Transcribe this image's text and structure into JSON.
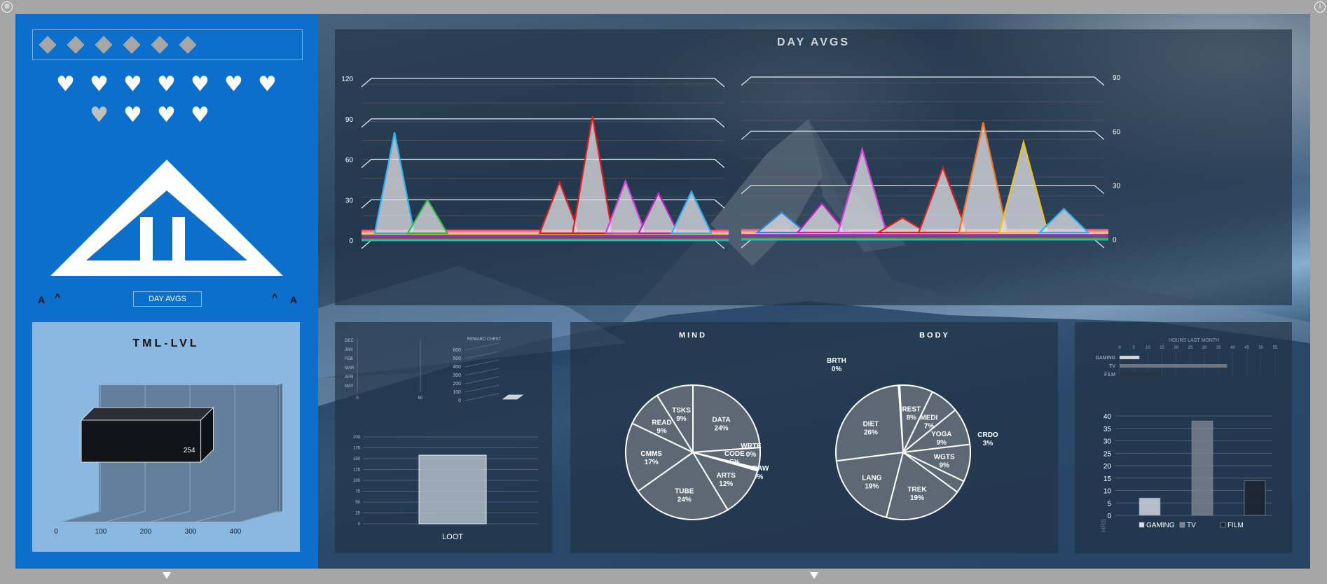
{
  "nav": {
    "button_label": "DAY AVGS",
    "left_a": "A",
    "left_caret": "^",
    "right_caret": "^",
    "right_a": "A"
  },
  "status": {
    "diamonds": 6,
    "hearts_total": 11,
    "hearts_grey_index": 7
  },
  "colors": {
    "left_panel": "#0b6fcb",
    "tml_box": "#8ab8e1",
    "card": "#203246"
  },
  "tml_chart": {
    "title": "TML-LVL",
    "chart_data": {
      "type": "bar",
      "orientation": "horizontal",
      "values": [
        254
      ],
      "value_label": "254",
      "xticks": [
        "0",
        "100",
        "200",
        "300",
        "400"
      ],
      "xlim": [
        0,
        400
      ]
    }
  },
  "day_avgs": {
    "title": "DAY AVGS",
    "left": {
      "yticks": [
        "0",
        "30",
        "60",
        "90",
        "120"
      ],
      "ylim": [
        0,
        120
      ],
      "peaks": [
        {
          "x": 1,
          "y": 80,
          "color": "#2eb0f0"
        },
        {
          "x": 2,
          "y": 30,
          "color": "#2db84c"
        },
        {
          "x": 6,
          "y": 43,
          "color": "#e02020"
        },
        {
          "x": 7,
          "y": 92,
          "color": "#e02020"
        },
        {
          "x": 8,
          "y": 44,
          "color": "#d43fe0"
        },
        {
          "x": 9,
          "y": 35,
          "color": "#c020c0"
        },
        {
          "x": 10,
          "y": 36,
          "color": "#2eb0f0"
        }
      ]
    },
    "right": {
      "yticks": [
        "0",
        "30",
        "60",
        "90"
      ],
      "ylim": [
        0,
        90
      ],
      "peaks": [
        {
          "x": 1,
          "y": 15,
          "color": "#2e86e0"
        },
        {
          "x": 2,
          "y": 20,
          "color": "#c020c0"
        },
        {
          "x": 3,
          "y": 50,
          "color": "#d43fe0"
        },
        {
          "x": 4,
          "y": 12,
          "color": "#e02020"
        },
        {
          "x": 5,
          "y": 40,
          "color": "#e02020"
        },
        {
          "x": 6,
          "y": 65,
          "color": "#f07020"
        },
        {
          "x": 7,
          "y": 54,
          "color": "#f0c020"
        },
        {
          "x": 8,
          "y": 17,
          "color": "#2eb0f0"
        }
      ]
    },
    "baseline_colors": [
      "#ff4fa0",
      "#ff8c60",
      "#ffb0c0",
      "#f0e040",
      "#c020c0",
      "#2060ff",
      "#e02020",
      "#2db84c",
      "#20c0c0"
    ]
  },
  "loot_chart": {
    "months": [
      "DEC",
      "JAN",
      "FEB",
      "MAR",
      "APR",
      "MAY"
    ],
    "month_axis": [
      "0",
      "50"
    ],
    "reward_title": "REWARD CHEST",
    "reward_ticks": [
      "0",
      "100",
      "200",
      "300",
      "400",
      "500",
      "600"
    ],
    "chart_data": {
      "type": "bar",
      "categories": [
        "LOOT"
      ],
      "values": [
        158
      ],
      "yticks": [
        "0",
        "25",
        "50",
        "75",
        "100",
        "125",
        "150",
        "175",
        "200"
      ],
      "ylim": [
        0,
        200
      ]
    }
  },
  "mind_chart": {
    "title": "MIND",
    "chart_data": {
      "type": "pie",
      "slices": [
        {
          "label": "DATA",
          "value": 24,
          "pct": "24%"
        },
        {
          "label": "CODE",
          "value": 5,
          "pct": "5%"
        },
        {
          "label": "WRTE",
          "value": 0.3,
          "pct": "0%"
        },
        {
          "label": "DRAW",
          "value": 0.3,
          "pct": "0%"
        },
        {
          "label": "ARTS",
          "value": 12,
          "pct": "12%"
        },
        {
          "label": "TUBE",
          "value": 24,
          "pct": "24%"
        },
        {
          "label": "CMMS",
          "value": 17,
          "pct": "17%"
        },
        {
          "label": "READ",
          "value": 9,
          "pct": "9%"
        },
        {
          "label": "TSKS",
          "value": 9,
          "pct": "9%"
        }
      ]
    }
  },
  "body_chart": {
    "title": "BODY",
    "chart_data": {
      "type": "pie",
      "slices": [
        {
          "label": "BRTH",
          "value": 0.3,
          "pct": "0%"
        },
        {
          "label": "REST",
          "value": 8,
          "pct": "8%"
        },
        {
          "label": "MEDI",
          "value": 7,
          "pct": "7%"
        },
        {
          "label": "YOGA",
          "value": 9,
          "pct": "9%"
        },
        {
          "label": "WGTS",
          "value": 9,
          "pct": "9%"
        },
        {
          "label": "CRDO",
          "value": 3,
          "pct": "3%"
        },
        {
          "label": "TREK",
          "value": 19,
          "pct": "19%"
        },
        {
          "label": "LANG",
          "value": 19,
          "pct": "19%"
        },
        {
          "label": "DIET",
          "value": 26,
          "pct": "26%"
        }
      ]
    }
  },
  "hours_chart": {
    "title": "HOURS LAST MONTH",
    "top_chart": {
      "type": "bar",
      "orientation": "horizontal",
      "categories": [
        "GAMING",
        "TV",
        "FILM"
      ],
      "values": [
        7,
        38,
        14
      ],
      "xticks": [
        "0",
        "5",
        "10",
        "15",
        "20",
        "25",
        "30",
        "35",
        "40",
        "45",
        "50",
        "55"
      ]
    },
    "chart_data": {
      "type": "bar",
      "categories": [
        "GAMING",
        "TV",
        "FILM"
      ],
      "values": [
        7,
        38,
        14
      ],
      "yticks": [
        "0",
        "5",
        "10",
        "15",
        "20",
        "25",
        "30",
        "35",
        "40"
      ],
      "ylim": [
        0,
        40
      ],
      "ylabel": "HRS",
      "legend": [
        "GAMING",
        "TV",
        "FILM"
      ],
      "colors": [
        "#d9dfe6",
        "#7d8590",
        "#1c2630"
      ]
    }
  }
}
